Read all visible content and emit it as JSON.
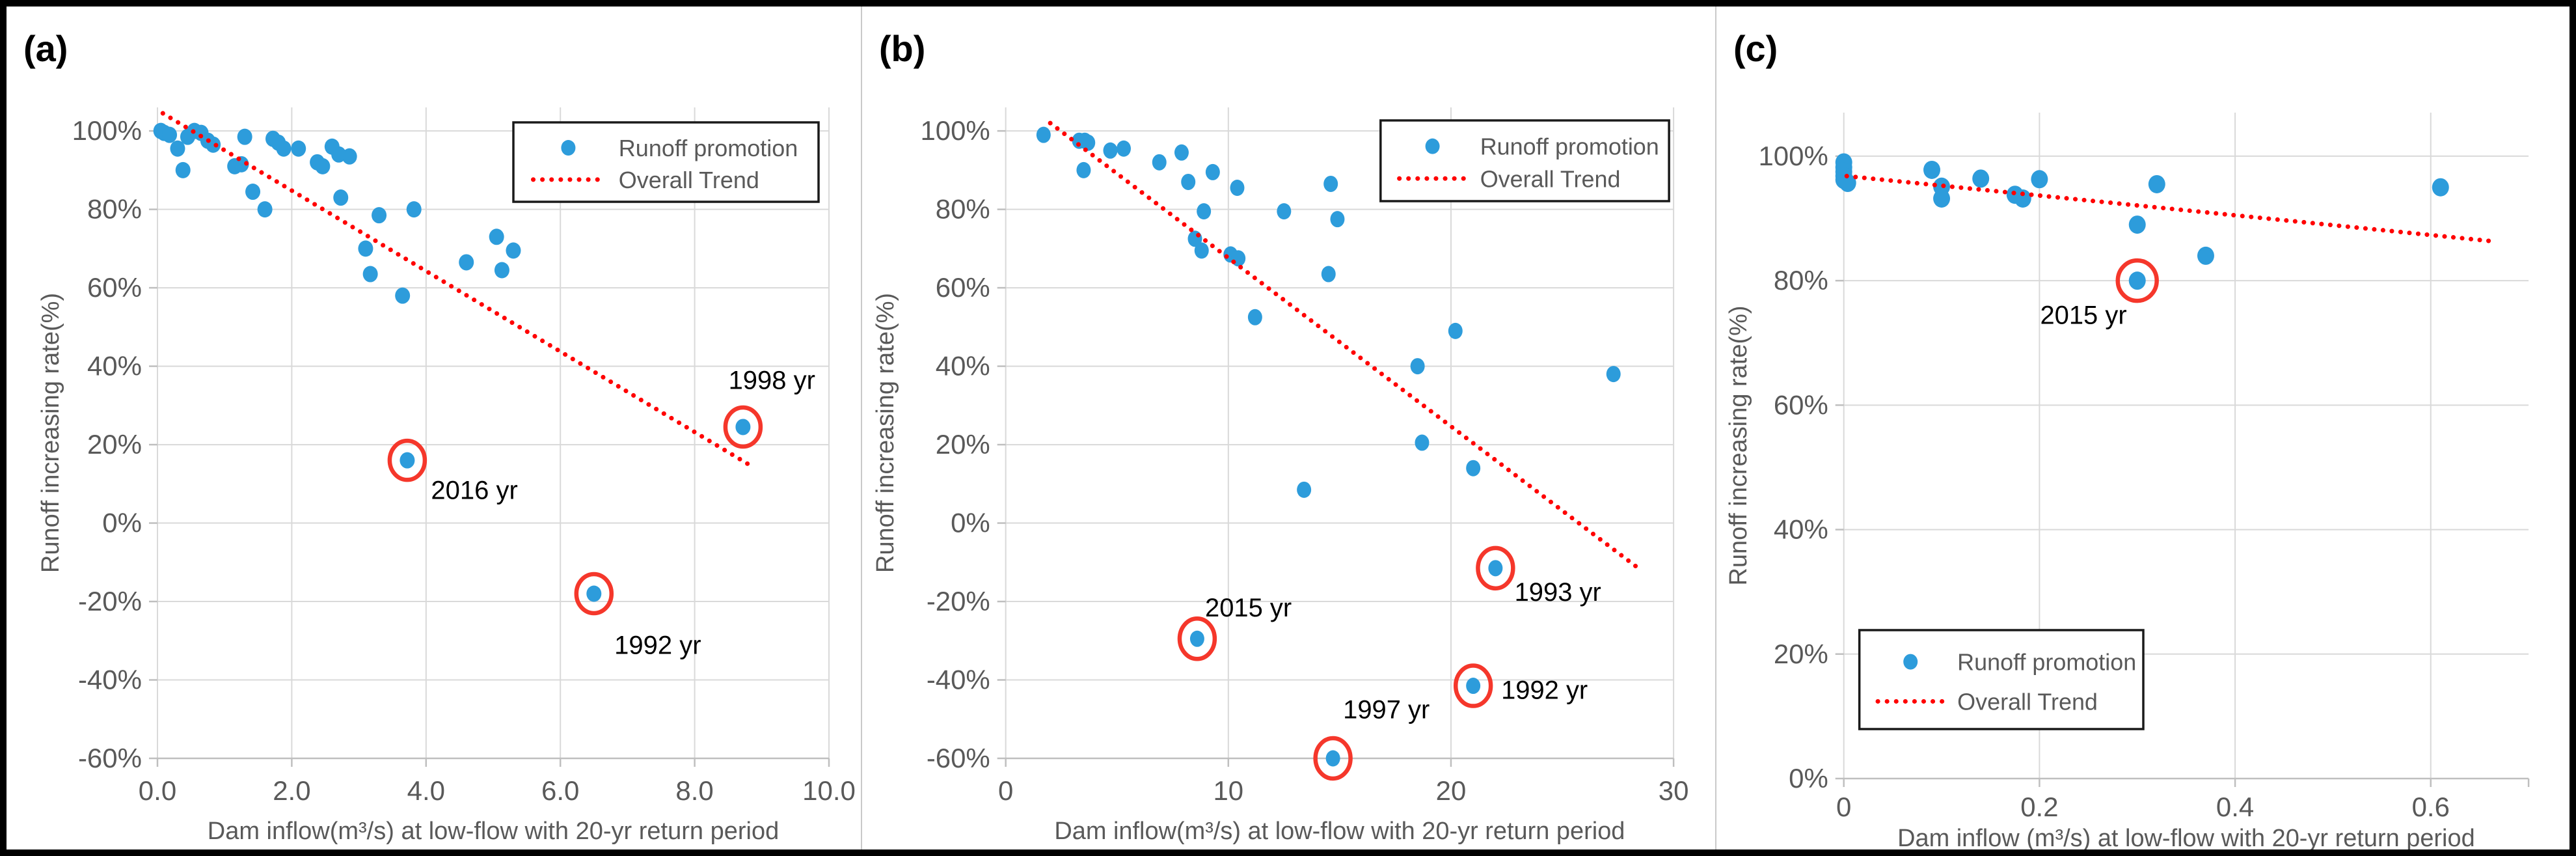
{
  "figure": {
    "background": "#ffffff",
    "border_color": "#000000",
    "colors": {
      "marker_blue": "#2D9CDB",
      "trend_red": "#FF0000",
      "circle_red": "#F5372B",
      "gridline": "#D9D9D9",
      "axis_line": "#BFBFBF",
      "tick_text": "#595959",
      "annotation_text": "#000000",
      "legend_border": "#1a1a1a",
      "panel_separator": "#c9c9c9"
    },
    "legend": {
      "marker_label": "Runoff promotion",
      "trend_label": "Overall Trend"
    }
  },
  "chart_data": [
    {
      "type": "scatter",
      "label": "(a)",
      "xlabel": "Dam inflow(m³/s) at low-flow with 20-yr return period",
      "ylabel": "Runoff increasing rate(%)",
      "xlim": [
        0,
        10
      ],
      "ylim": [
        -60,
        106
      ],
      "grid": true,
      "legend_position": "top-right",
      "x_ticks": [
        {
          "v": 0,
          "label": "0.0"
        },
        {
          "v": 2,
          "label": "2.0"
        },
        {
          "v": 4,
          "label": "4.0"
        },
        {
          "v": 6,
          "label": "6.0"
        },
        {
          "v": 8,
          "label": "8.0"
        },
        {
          "v": 10,
          "label": "10.0"
        }
      ],
      "y_ticks": [
        {
          "v": 100,
          "label": "100%"
        },
        {
          "v": 80,
          "label": "80%"
        },
        {
          "v": 60,
          "label": "60%"
        },
        {
          "v": 40,
          "label": "40%"
        },
        {
          "v": 20,
          "label": "20%"
        },
        {
          "v": 0,
          "label": "0%"
        },
        {
          "v": -20,
          "label": "-20%"
        },
        {
          "v": -40,
          "label": "-40%"
        },
        {
          "v": -60,
          "label": "-60%"
        }
      ],
      "points": [
        [
          0.05,
          100
        ],
        [
          0.1,
          99.5
        ],
        [
          0.18,
          99
        ],
        [
          0.3,
          95.5
        ],
        [
          0.38,
          90
        ],
        [
          0.45,
          98.5
        ],
        [
          0.55,
          100
        ],
        [
          0.65,
          99.5
        ],
        [
          0.75,
          97.5
        ],
        [
          0.83,
          96.5
        ],
        [
          1.15,
          91
        ],
        [
          1.25,
          91.5
        ],
        [
          1.3,
          98.5
        ],
        [
          1.42,
          84.5
        ],
        [
          1.6,
          80
        ],
        [
          1.72,
          98
        ],
        [
          1.8,
          97
        ],
        [
          1.88,
          95.5
        ],
        [
          2.1,
          95.5
        ],
        [
          2.38,
          92
        ],
        [
          2.46,
          91
        ],
        [
          2.6,
          96
        ],
        [
          2.7,
          94
        ],
        [
          2.73,
          83
        ],
        [
          2.86,
          93.5
        ],
        [
          3.1,
          70
        ],
        [
          3.17,
          63.5
        ],
        [
          3.3,
          78.5
        ],
        [
          3.65,
          58
        ],
        [
          3.82,
          80
        ],
        [
          4.6,
          66.5
        ],
        [
          5.05,
          73
        ],
        [
          5.13,
          64.5
        ],
        [
          5.3,
          69.5
        ]
      ],
      "annotations": [
        {
          "x": 3.72,
          "y": 16,
          "label": "2016 yr",
          "label_x": 4.72,
          "label_y": 8.5
        },
        {
          "x": 6.5,
          "y": -18,
          "label": "1992 yr",
          "label_x": 7.45,
          "label_y": -31
        },
        {
          "x": 8.72,
          "y": 24.5,
          "label": "1998 yr",
          "label_x": 9.15,
          "label_y": 36.5
        }
      ],
      "trend": {
        "x1": 0.08,
        "y1": 104.5,
        "x2": 8.8,
        "y2": 15
      }
    },
    {
      "type": "scatter",
      "label": "(b)",
      "xlabel": "Dam inflow(m³/s) at low-flow with 20-yr return period",
      "ylabel": "Runoff increasing rate(%)",
      "xlim": [
        0,
        30
      ],
      "ylim": [
        -60,
        106
      ],
      "grid": true,
      "legend_position": "top-right",
      "x_ticks": [
        {
          "v": 0,
          "label": "0"
        },
        {
          "v": 10,
          "label": "10"
        },
        {
          "v": 20,
          "label": "20"
        },
        {
          "v": 30,
          "label": "30"
        }
      ],
      "y_ticks": [
        {
          "v": 100,
          "label": "100%"
        },
        {
          "v": 80,
          "label": "80%"
        },
        {
          "v": 60,
          "label": "60%"
        },
        {
          "v": 40,
          "label": "40%"
        },
        {
          "v": 20,
          "label": "20%"
        },
        {
          "v": 0,
          "label": "0%"
        },
        {
          "v": -20,
          "label": "-20%"
        },
        {
          "v": -40,
          "label": "-40%"
        },
        {
          "v": -60,
          "label": "-60%"
        }
      ],
      "points": [
        [
          1.7,
          99
        ],
        [
          3.3,
          97.5
        ],
        [
          3.55,
          97.5
        ],
        [
          3.7,
          97
        ],
        [
          3.5,
          90
        ],
        [
          4.7,
          95
        ],
        [
          5.3,
          95.5
        ],
        [
          6.9,
          92
        ],
        [
          7.9,
          94.5
        ],
        [
          8.2,
          87
        ],
        [
          8.9,
          79.5
        ],
        [
          8.5,
          72.5
        ],
        [
          8.8,
          69.5
        ],
        [
          9.3,
          89.5
        ],
        [
          10.1,
          68.5
        ],
        [
          10.45,
          67.5
        ],
        [
          10.4,
          85.5
        ],
        [
          11.2,
          52.5
        ],
        [
          12.5,
          79.5
        ],
        [
          13.4,
          8.5
        ],
        [
          14.5,
          63.5
        ],
        [
          14.6,
          86.5
        ],
        [
          14.9,
          77.5
        ],
        [
          18.5,
          40
        ],
        [
          18.7,
          20.5
        ],
        [
          20.2,
          49
        ],
        [
          21,
          14
        ],
        [
          27.3,
          38
        ]
      ],
      "annotations": [
        {
          "x": 8.6,
          "y": -29.5,
          "label": "2015 yr",
          "label_x": 10.9,
          "label_y": -21.5
        },
        {
          "x": 14.7,
          "y": -60,
          "label": "1997 yr",
          "label_x": 17.1,
          "label_y": -47.5
        },
        {
          "x": 21,
          "y": -41.5,
          "label": "1992 yr",
          "label_x": 24.2,
          "label_y": -42.5
        },
        {
          "x": 22,
          "y": -11.5,
          "label": "1993 yr",
          "label_x": 24.8,
          "label_y": -17.5
        }
      ],
      "trend": {
        "x1": 2.0,
        "y1": 102,
        "x2": 28.3,
        "y2": -11
      }
    },
    {
      "type": "scatter",
      "label": "(c)",
      "xlabel": "Dam inflow (m³/s) at low-flow with 20-yr return period",
      "ylabel": "Runoff increasing rate(%)",
      "xlim": [
        0,
        0.7
      ],
      "ylim": [
        0,
        107
      ],
      "grid": true,
      "legend_position": "bottom-left",
      "x_ticks": [
        {
          "v": 0,
          "label": "0"
        },
        {
          "v": 0.2,
          "label": "0.2"
        },
        {
          "v": 0.4,
          "label": "0.4"
        },
        {
          "v": 0.6,
          "label": "0.6"
        }
      ],
      "edge_ticks": [
        0.7
      ],
      "y_ticks": [
        {
          "v": 100,
          "label": "100%"
        },
        {
          "v": 80,
          "label": "80%"
        },
        {
          "v": 60,
          "label": "60%"
        },
        {
          "v": 40,
          "label": "40%"
        },
        {
          "v": 20,
          "label": "20%"
        },
        {
          "v": 0,
          "label": "0%"
        }
      ],
      "points": [
        [
          0,
          99
        ],
        [
          0,
          98.2
        ],
        [
          0,
          97.5
        ],
        [
          0,
          96.8
        ],
        [
          0,
          96.2
        ],
        [
          0.004,
          95.7
        ],
        [
          0.09,
          97.8
        ],
        [
          0.1,
          95.1
        ],
        [
          0.1,
          93.2
        ],
        [
          0.14,
          96.4
        ],
        [
          0.175,
          93.8
        ],
        [
          0.183,
          93.2
        ],
        [
          0.2,
          96.3
        ],
        [
          0.3,
          89
        ],
        [
          0.32,
          95.5
        ],
        [
          0.37,
          84
        ],
        [
          0.61,
          95
        ]
      ],
      "annotations": [
        {
          "x": 0.3,
          "y": 80,
          "label": "2015 yr",
          "label_x": 0.245,
          "label_y": 74.5
        }
      ],
      "trend": {
        "x1": 0.003,
        "y1": 96.8,
        "x2": 0.665,
        "y2": 86.3
      }
    }
  ]
}
